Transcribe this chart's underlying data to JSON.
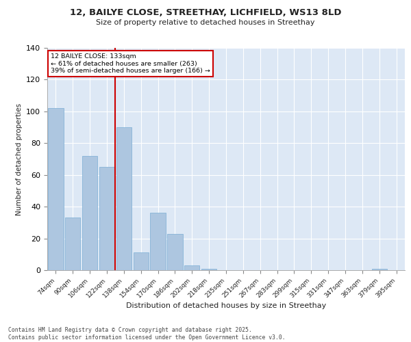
{
  "title_line1": "12, BAILYE CLOSE, STREETHAY, LICHFIELD, WS13 8LD",
  "title_line2": "Size of property relative to detached houses in Streethay",
  "xlabel": "Distribution of detached houses by size in Streethay",
  "ylabel": "Number of detached properties",
  "categories": [
    "74sqm",
    "90sqm",
    "106sqm",
    "122sqm",
    "138sqm",
    "154sqm",
    "170sqm",
    "186sqm",
    "202sqm",
    "218sqm",
    "235sqm",
    "251sqm",
    "267sqm",
    "283sqm",
    "299sqm",
    "315sqm",
    "331sqm",
    "347sqm",
    "363sqm",
    "379sqm",
    "395sqm"
  ],
  "values": [
    102,
    33,
    72,
    65,
    90,
    11,
    36,
    23,
    3,
    1,
    0,
    0,
    0,
    0,
    0,
    0,
    0,
    0,
    0,
    1,
    0
  ],
  "bar_color": "#adc6e0",
  "bar_edge_color": "#7aadd4",
  "background_color": "#dde8f5",
  "grid_color": "#ffffff",
  "vline_color": "#cc0000",
  "annotation_title": "12 BAILYE CLOSE: 133sqm",
  "annotation_line1": "← 61% of detached houses are smaller (263)",
  "annotation_line2": "39% of semi-detached houses are larger (166) →",
  "annotation_box_color": "#cc0000",
  "ylim": [
    0,
    140
  ],
  "yticks": [
    0,
    20,
    40,
    60,
    80,
    100,
    120,
    140
  ],
  "footer_line1": "Contains HM Land Registry data © Crown copyright and database right 2025.",
  "footer_line2": "Contains public sector information licensed under the Open Government Licence v3.0."
}
